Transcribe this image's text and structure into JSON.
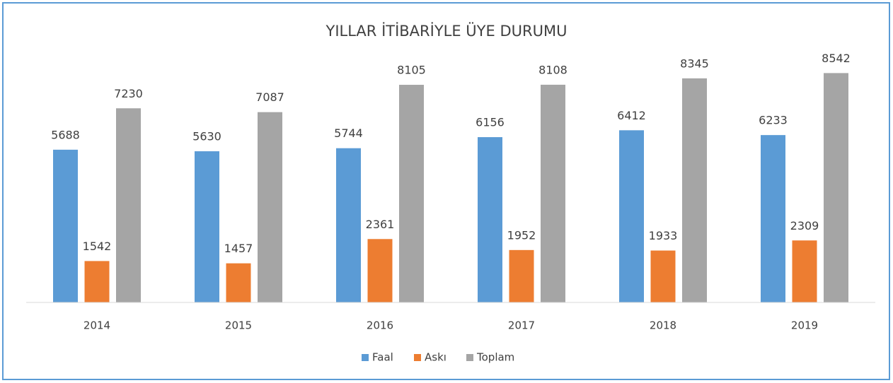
{
  "chart_data": {
    "type": "bar",
    "title": "YILLAR İTİBARİYLE ÜYE DURUMU",
    "categories": [
      "2014",
      "2015",
      "2016",
      "2017",
      "2018",
      "2019"
    ],
    "series": [
      {
        "name": "Faal",
        "color": "#5b9bd5",
        "values": [
          5688,
          5630,
          5744,
          6156,
          6412,
          6233
        ]
      },
      {
        "name": "Askı",
        "color": "#ed7d31",
        "values": [
          1542,
          1457,
          2361,
          1952,
          1933,
          2309
        ]
      },
      {
        "name": "Toplam",
        "color": "#a5a5a5",
        "values": [
          7230,
          7087,
          8105,
          8108,
          8345,
          8542
        ]
      }
    ],
    "ylim": [
      0,
      10000
    ],
    "legend": "bottom"
  }
}
